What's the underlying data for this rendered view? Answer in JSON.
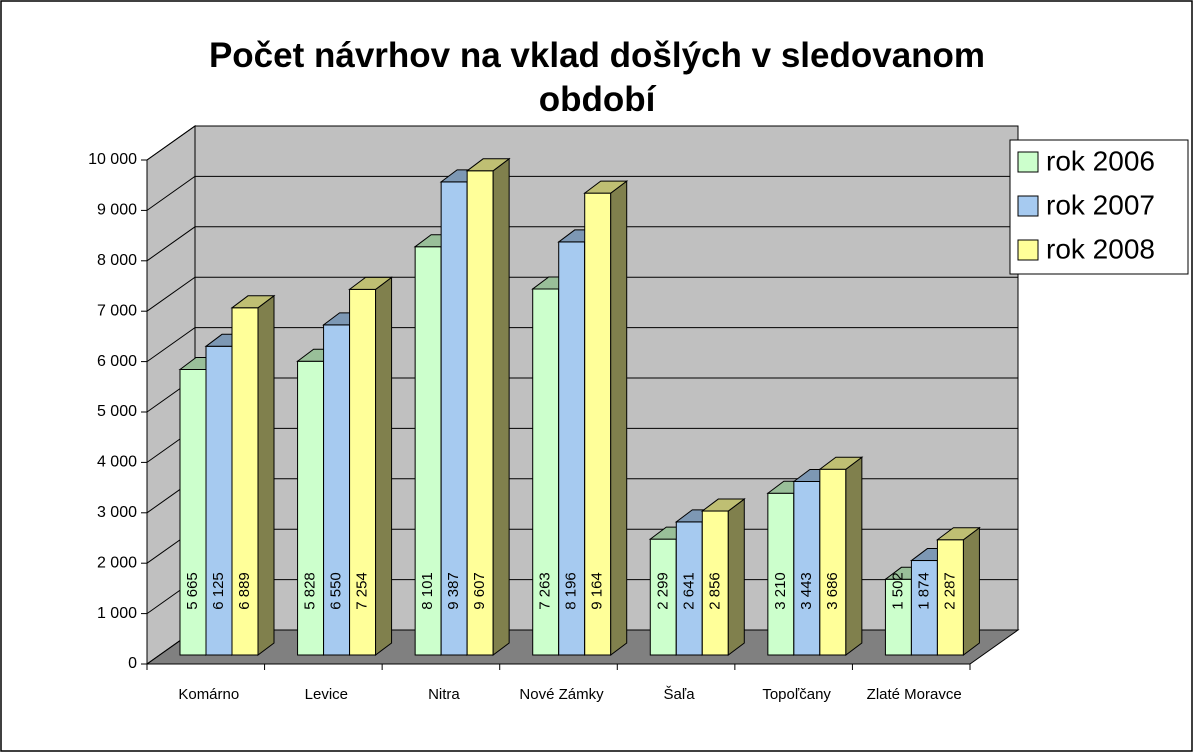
{
  "chart_data": {
    "type": "bar3d",
    "title": "Počet návrhov na vklad došlých v sledovanom období",
    "categories": [
      "Komárno",
      "Levice",
      "Nitra",
      "Nové Zámky",
      "Šaľa",
      "Topoľčany",
      "Zlaté Moravce"
    ],
    "series": [
      {
        "name": "rok 2006",
        "color": "#ccffcc",
        "values": [
          5665,
          5828,
          8101,
          7263,
          2299,
          3210,
          1502
        ],
        "value_labels": [
          "5 665",
          "5 828",
          "8 101",
          "7 263",
          "2 299",
          "3 210",
          "1 502"
        ]
      },
      {
        "name": "rok 2007",
        "color": "#a6caf0",
        "values": [
          6125,
          6550,
          9387,
          8196,
          2641,
          3443,
          1874
        ],
        "value_labels": [
          "6 125",
          "6 550",
          "9 387",
          "8 196",
          "2 641",
          "3 443",
          "1 874"
        ]
      },
      {
        "name": "rok 2008",
        "color": "#ffff99",
        "values": [
          6889,
          7254,
          9607,
          9164,
          2856,
          3686,
          2287
        ],
        "value_labels": [
          "6 889",
          "7 254",
          "9 607",
          "9 164",
          "2 856",
          "3 686",
          "2 287"
        ]
      }
    ],
    "ylim": [
      0,
      10000
    ],
    "yticks": [
      0,
      {
        "value": 1000,
        "label": "1 000"
      },
      {
        "value": 2000,
        "label": "2 000"
      },
      {
        "value": 3000,
        "label": "3 000"
      },
      {
        "value": 4000,
        "label": "4 000"
      },
      {
        "value": 5000,
        "label": "5 000"
      },
      {
        "value": 6000,
        "label": "6 000"
      },
      {
        "value": 7000,
        "label": "7 000"
      },
      {
        "value": 8000,
        "label": "8 000"
      },
      {
        "value": 9000,
        "label": "9 000"
      },
      {
        "value": 10000,
        "label": "10 000"
      }
    ],
    "grid": true,
    "legend": "right"
  }
}
